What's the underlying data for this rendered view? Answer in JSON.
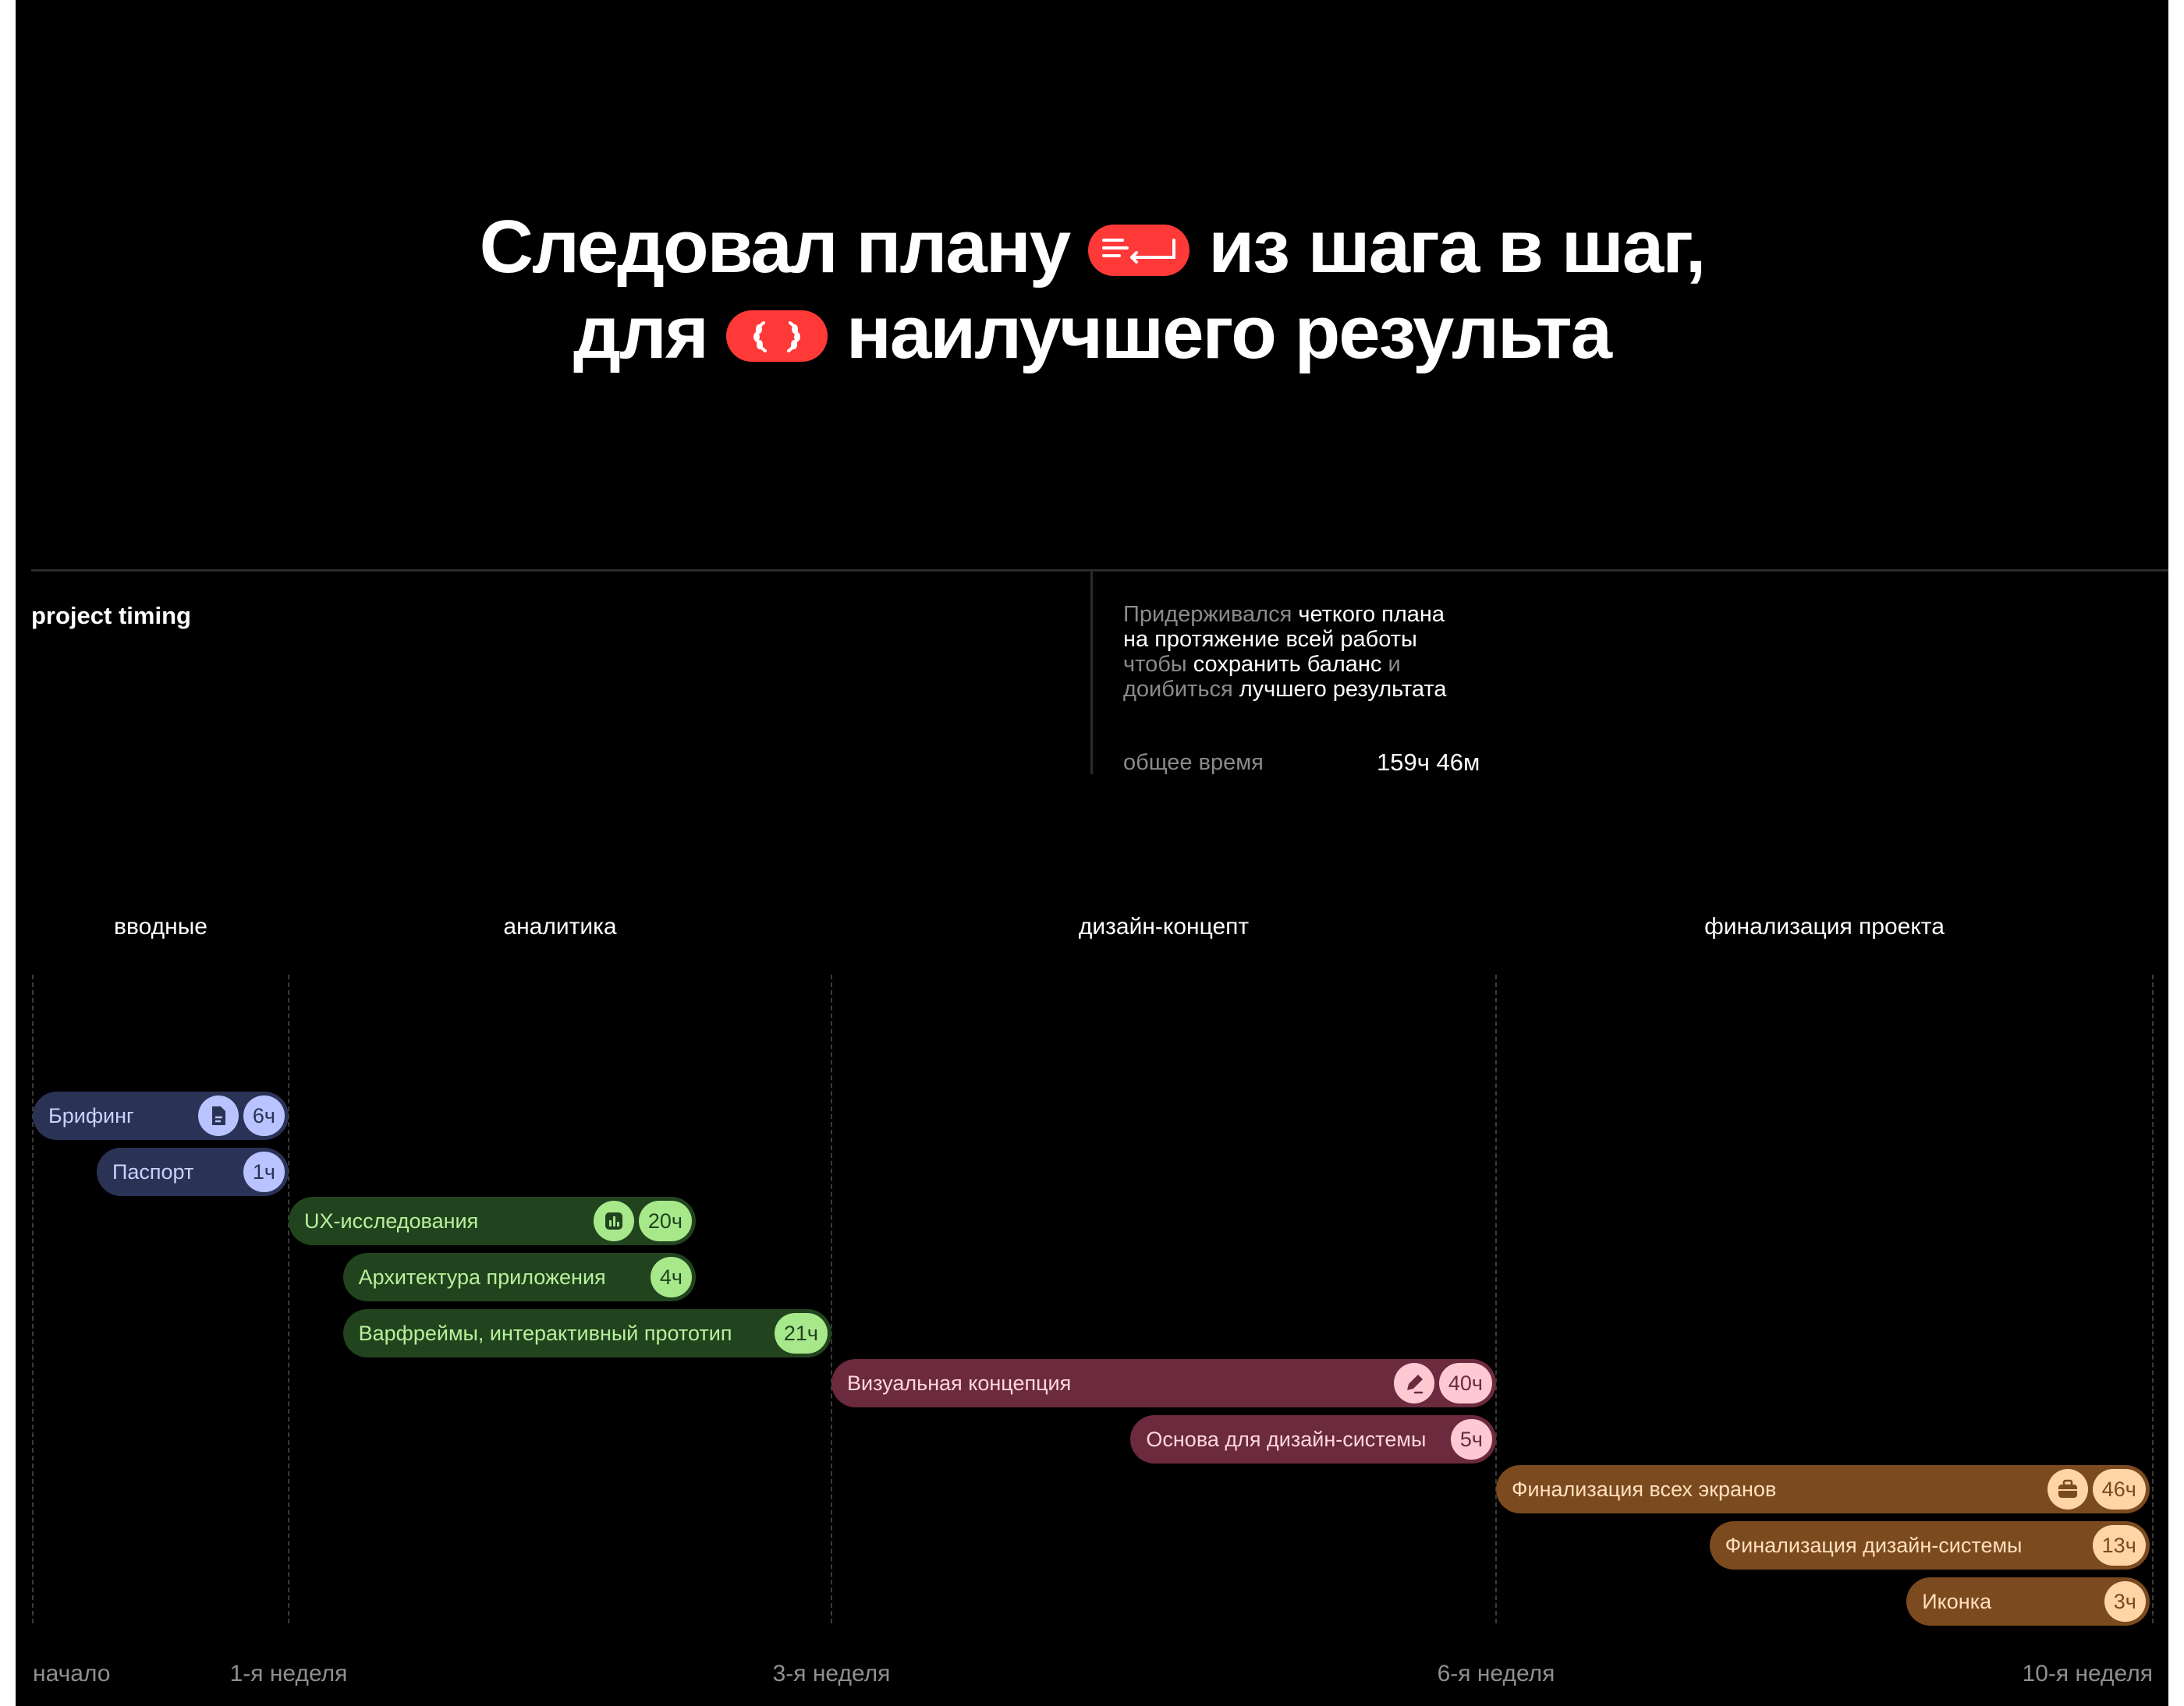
{
  "headline": {
    "line1_a": "Следовал плану",
    "line1_b": "из шага в шаг,",
    "line2_a": "для",
    "line2_b": "наилучшего результа",
    "accent": "#ff3838",
    "icon1": "list-arrow-icon",
    "icon2": "laurel-icon"
  },
  "section": {
    "label": "project timing",
    "description": [
      {
        "muted": "Придерживался ",
        "strong": "четкого плана"
      },
      {
        "muted": "",
        "strong": "на протяжение всей работы"
      },
      {
        "muted": "чтобы ",
        "strong": "сохранить баланс ",
        "muted2": "и"
      },
      {
        "muted": "доибиться ",
        "strong": "лучшего результата"
      }
    ],
    "total_label": "общее время",
    "total_value": "159ч 46м"
  },
  "chart_data": {
    "type": "gantt",
    "title": "",
    "x_axis": {
      "unit": "weeks",
      "range": [
        0,
        10
      ],
      "ticks": [
        {
          "value": 0,
          "label": "начало"
        },
        {
          "value": 1,
          "label": "1-я неделя"
        },
        {
          "value": 3,
          "label": "3-я неделя"
        },
        {
          "value": 6,
          "label": "6-я неделя"
        },
        {
          "value": 10,
          "label": "10-я неделя"
        }
      ]
    },
    "phases": [
      {
        "name": "вводные",
        "start": 0,
        "end": 1,
        "color": "#2a3356",
        "badge_color": "#b9c3ff",
        "text_color": "#c9d1ff"
      },
      {
        "name": "аналитика",
        "start": 1,
        "end": 3,
        "color": "#21431e",
        "badge_color": "#a7e98a",
        "text_color": "#b8f09b"
      },
      {
        "name": "дизайн-концепт",
        "start": 3,
        "end": 6,
        "color": "#6b2a3d",
        "badge_color": "#ffc9d4",
        "text_color": "#ffd6de"
      },
      {
        "name": "финализация проекта",
        "start": 6,
        "end": 10,
        "color": "#7b4a1f",
        "badge_color": "#ffd5a6",
        "text_color": "#ffe0bd"
      }
    ],
    "tasks": [
      {
        "name": "Брифинг",
        "phase": 0,
        "start": 0,
        "end": 1,
        "hours": "6ч",
        "icon": "document-icon"
      },
      {
        "name": "Паспорт",
        "phase": 0,
        "start": 0.25,
        "end": 1,
        "hours": "1ч",
        "icon": ""
      },
      {
        "name": "UX-исследования",
        "phase": 1,
        "start": 1,
        "end": 2.5,
        "hours": "20ч",
        "icon": "bar-chart-icon"
      },
      {
        "name": "Архитектура приложения",
        "phase": 1,
        "start": 1.2,
        "end": 2.5,
        "hours": "4ч",
        "icon": ""
      },
      {
        "name": "Варфреймы, интерактивный прототип",
        "phase": 1,
        "start": 1.2,
        "end": 3,
        "hours": "21ч",
        "icon": ""
      },
      {
        "name": "Визуальная концепция",
        "phase": 2,
        "start": 3,
        "end": 6,
        "hours": "40ч",
        "icon": "pen-icon"
      },
      {
        "name": "Основа для дизайн-системы",
        "phase": 2,
        "start": 4.35,
        "end": 6,
        "hours": "5ч",
        "icon": ""
      },
      {
        "name": "Финализация всех экранов",
        "phase": 3,
        "start": 6,
        "end": 9.98,
        "hours": "46ч",
        "icon": "briefcase-icon"
      },
      {
        "name": "Финализация дизайн-системы",
        "phase": 3,
        "start": 7.3,
        "end": 9.98,
        "hours": "13ч",
        "icon": ""
      },
      {
        "name": "Иконка",
        "phase": 3,
        "start": 8.5,
        "end": 9.98,
        "hours": "3ч",
        "icon": ""
      }
    ]
  }
}
